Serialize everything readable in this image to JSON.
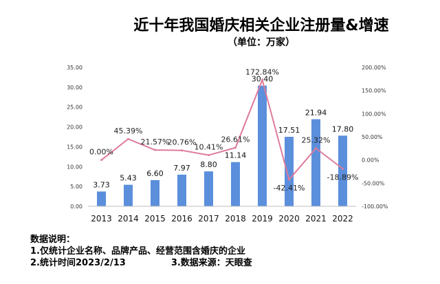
{
  "title": "近十年我国婚庆相关企业注册量&增速",
  "subtitle": "（单位：万家）",
  "chart_data": {
    "type": "bar",
    "categories": [
      "2013",
      "2014",
      "2015",
      "2016",
      "2017",
      "2018",
      "2019",
      "2020",
      "2021",
      "2022"
    ],
    "series": [
      {
        "kind": "bar",
        "values": [
          3.73,
          5.43,
          6.6,
          7.97,
          8.8,
          11.14,
          30.4,
          17.51,
          21.94,
          17.8
        ],
        "labels": [
          "3.73",
          "5.43",
          "6.60",
          "7.97",
          "8.80",
          "11.14",
          "30.40",
          "17.51",
          "21.94",
          "17.80"
        ]
      },
      {
        "kind": "line",
        "values": [
          0.0,
          45.39,
          21.57,
          20.76,
          10.41,
          26.61,
          172.84,
          -42.41,
          25.32,
          -18.89
        ],
        "labels": [
          "0.00%",
          "45.39%",
          "21.57%",
          "20.76%",
          "10.41%",
          "26.61%",
          "172.84%",
          "-42.41%",
          "25.32%",
          "-18.89%"
        ]
      }
    ],
    "left_axis": {
      "ticks": [
        "0.00",
        "5.00",
        "10.00",
        "15.00",
        "20.00",
        "25.00",
        "30.00",
        "35.00"
      ],
      "range": [
        0,
        35
      ]
    },
    "right_axis": {
      "ticks": [
        "-100.00%",
        "-50.00%",
        "0.00%",
        "50.00%",
        "100.00%",
        "150.00%",
        "200.00%"
      ],
      "range": [
        -100,
        200
      ]
    },
    "colors": {
      "bar": "#5b8fdc",
      "line": "#de7a98"
    }
  },
  "notes": {
    "heading": "数据说明：",
    "line1": "1.仅统计企业名称、品牌产品、经营范围含婚庆的企业",
    "line2": "2.统计时间2023/2/13",
    "line3": "3.数据来源：天眼查"
  }
}
